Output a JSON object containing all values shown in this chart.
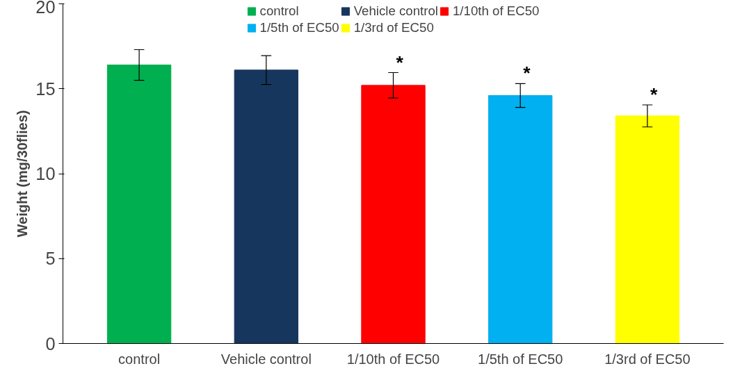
{
  "chart_data": {
    "type": "bar",
    "ylabel": "Weight (mg/30flies)",
    "categories": [
      "control",
      "Vehicle control",
      "1/10th of EC50",
      "1/5th of EC50",
      "1/3rd of EC50"
    ],
    "series": [
      {
        "name": "control",
        "color": "#00b050",
        "values": [
          16.4,
          null,
          null,
          null,
          null
        ],
        "errors": [
          0.9,
          null,
          null,
          null,
          null
        ]
      },
      {
        "name": "Vehicle control",
        "color": "#17365d",
        "values": [
          null,
          16.1,
          null,
          null,
          null
        ],
        "errors": [
          null,
          0.85,
          null,
          null,
          null
        ]
      },
      {
        "name": "1/10th of EC50",
        "color": "#ff0000",
        "values": [
          null,
          null,
          15.2,
          null,
          null
        ],
        "errors": [
          null,
          null,
          0.75,
          null,
          null
        ]
      },
      {
        "name": "1/5th of EC50",
        "color": "#00b0f0",
        "values": [
          null,
          null,
          null,
          14.6,
          null
        ],
        "errors": [
          null,
          null,
          null,
          0.7,
          null
        ]
      },
      {
        "name": "1/3rd of EC50",
        "color": "#ffff00",
        "values": [
          null,
          null,
          null,
          null,
          13.4
        ],
        "errors": [
          null,
          null,
          null,
          null,
          0.65
        ]
      }
    ],
    "ylim": [
      0,
      20
    ],
    "yticks": [
      0,
      5,
      10,
      15,
      20
    ],
    "grid": false,
    "legend": "top",
    "annotations": [
      {
        "text": "*",
        "x": "1/10th of EC50",
        "y": 15.95
      },
      {
        "text": "*",
        "x": "1/5th of EC50",
        "y": 15.3
      },
      {
        "text": "*",
        "x": "1/3rd of EC50",
        "y": 14.05
      }
    ]
  }
}
